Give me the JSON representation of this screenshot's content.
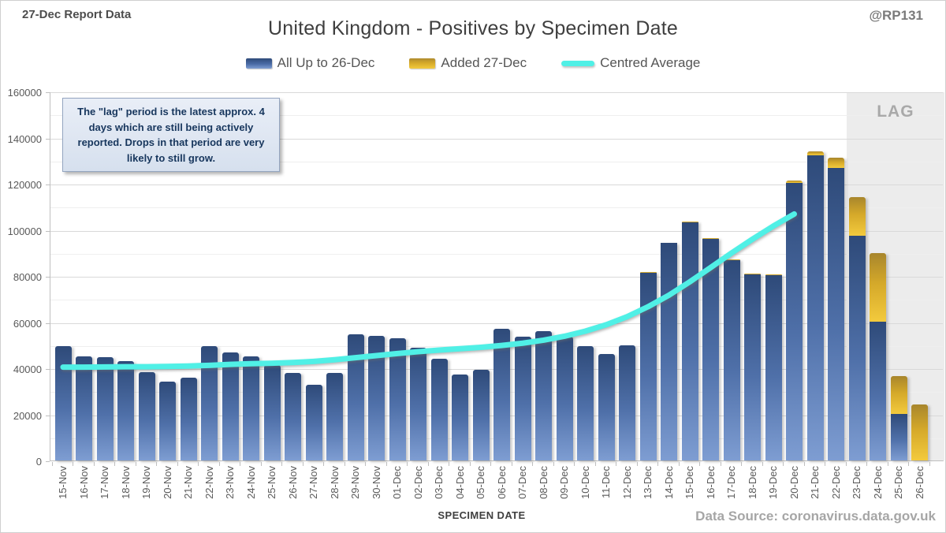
{
  "header": {
    "report_label": "27-Dec Report Data",
    "handle": "@RP131",
    "title": "United Kingdom - Positives by Specimen Date"
  },
  "legend": {
    "blue_label": "All Up to 26-Dec",
    "gold_label": "Added 27-Dec",
    "line_label": "Centred Average"
  },
  "annotation": {
    "text": "The \"lag\" period is the latest approx. 4 days which are still being actively reported. Drops in that period are very likely to still grow."
  },
  "footer": {
    "source": "Data Source: coronavirus.data.gov.uk"
  },
  "colors": {
    "bar_blue_top": "#2e4a79",
    "bar_blue_bottom": "#7e9dd2",
    "bar_gold_top": "#a8862c",
    "bar_gold_bottom": "#f3ca3d",
    "average_line": "#50f0e6",
    "lag_background": "#ececec"
  },
  "chart_data": {
    "type": "bar",
    "stacked": true,
    "title": "United Kingdom - Positives by Specimen Date",
    "xlabel": "SPECIMEN DATE",
    "ylabel": "",
    "ylim": [
      0,
      160000
    ],
    "y_major_step": 20000,
    "y_minor_step": 10000,
    "grid": true,
    "legend_position": "top",
    "categories": [
      "15-Nov",
      "16-Nov",
      "17-Nov",
      "18-Nov",
      "19-Nov",
      "20-Nov",
      "21-Nov",
      "22-Nov",
      "23-Nov",
      "24-Nov",
      "25-Nov",
      "26-Nov",
      "27-Nov",
      "28-Nov",
      "29-Nov",
      "30-Nov",
      "01-Dec",
      "02-Dec",
      "03-Dec",
      "04-Dec",
      "05-Dec",
      "06-Dec",
      "07-Dec",
      "08-Dec",
      "09-Dec",
      "10-Dec",
      "11-Dec",
      "12-Dec",
      "13-Dec",
      "14-Dec",
      "15-Dec",
      "16-Dec",
      "17-Dec",
      "18-Dec",
      "19-Dec",
      "20-Dec",
      "21-Dec",
      "22-Dec",
      "23-Dec",
      "24-Dec",
      "25-Dec",
      "26-Dec"
    ],
    "series": [
      {
        "name": "All Up to 26-Dec",
        "values": [
          49600,
          45100,
          44800,
          43100,
          38300,
          34200,
          35900,
          49600,
          46800,
          45100,
          41400,
          38000,
          32800,
          38000,
          54700,
          54000,
          53000,
          48900,
          44100,
          37300,
          39300,
          57100,
          53700,
          56100,
          53600,
          49600,
          46200,
          49900,
          81500,
          94200,
          103300,
          96200,
          87000,
          80800,
          80500,
          120500,
          132200,
          126900,
          97400,
          60200,
          20200,
          0
        ]
      },
      {
        "name": "Added 27-Dec",
        "values": [
          0,
          0,
          0,
          0,
          0,
          0,
          0,
          0,
          0,
          0,
          0,
          0,
          0,
          0,
          0,
          0,
          0,
          0,
          0,
          0,
          0,
          0,
          0,
          0,
          0,
          0,
          0,
          0,
          300,
          300,
          300,
          300,
          300,
          300,
          300,
          900,
          1900,
          4400,
          16800,
          29700,
          16400,
          24300
        ]
      }
    ],
    "line": {
      "name": "Centred Average",
      "categories": [
        "15-Nov",
        "16-Nov",
        "17-Nov",
        "18-Nov",
        "19-Nov",
        "20-Nov",
        "21-Nov",
        "22-Nov",
        "23-Nov",
        "24-Nov",
        "25-Nov",
        "26-Nov",
        "27-Nov",
        "28-Nov",
        "29-Nov",
        "30-Nov",
        "01-Dec",
        "02-Dec",
        "03-Dec",
        "04-Dec",
        "05-Dec",
        "06-Dec",
        "07-Dec",
        "08-Dec",
        "09-Dec",
        "10-Dec",
        "11-Dec",
        "12-Dec",
        "13-Dec",
        "14-Dec",
        "15-Dec",
        "16-Dec",
        "17-Dec",
        "18-Dec",
        "19-Dec",
        "20-Dec"
      ],
      "values": [
        40800,
        40800,
        40900,
        41000,
        41000,
        41100,
        41300,
        41600,
        42000,
        42300,
        42500,
        42800,
        43300,
        44000,
        44900,
        45800,
        46700,
        47500,
        48200,
        48800,
        49400,
        50200,
        51200,
        52500,
        54200,
        56400,
        59200,
        62700,
        67000,
        72000,
        77800,
        84000,
        90300,
        96300,
        102000,
        107200
      ]
    },
    "lag_region": {
      "label": "LAG",
      "start_category": "23-Dec",
      "end_category": "26-Dec"
    }
  }
}
